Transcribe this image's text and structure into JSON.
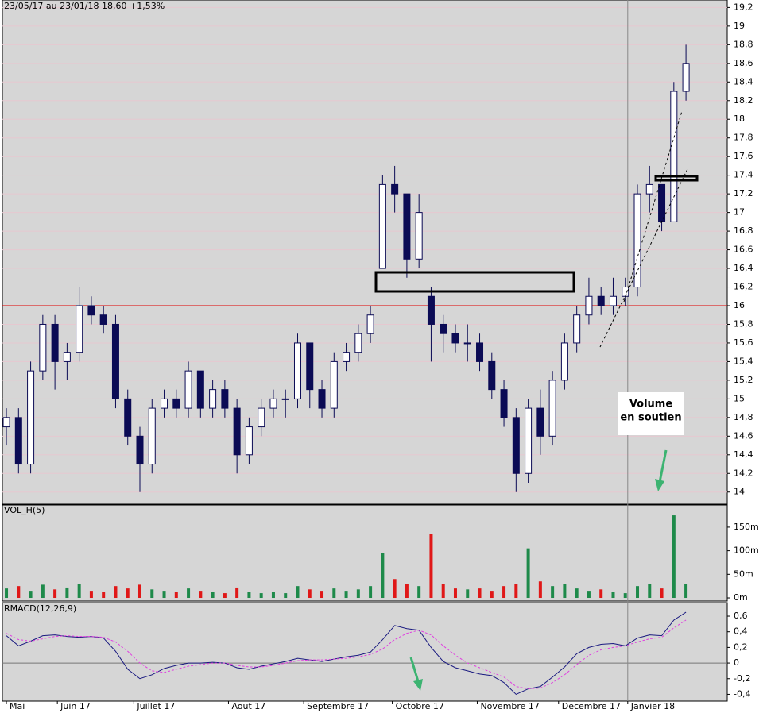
{
  "chart_data": [
    {
      "type": "candlestick",
      "title": "23/05/17 au 23/01/18  18,60  +1,53%",
      "open": [
        14.7,
        14.8,
        14.3,
        15.3,
        15.8,
        15.4,
        15.5,
        16.0,
        15.9,
        15.8,
        15.0,
        14.6,
        14.3,
        14.9,
        15.0,
        14.9,
        15.3,
        14.9,
        15.1,
        14.9,
        14.4,
        14.7,
        14.9,
        15.0,
        15.0,
        15.6,
        15.1,
        14.9,
        15.4,
        15.5,
        15.7,
        16.4,
        17.3,
        17.2,
        16.5,
        16.1,
        15.8,
        15.7,
        15.6,
        15.6,
        15.4,
        15.1,
        14.8,
        14.2,
        14.9,
        14.6,
        15.2,
        15.6,
        15.9,
        16.1,
        16.0,
        16.1,
        16.2,
        17.2,
        17.3,
        16.9,
        18.3
      ],
      "high": [
        14.9,
        14.9,
        15.4,
        15.9,
        15.9,
        15.6,
        16.2,
        16.1,
        16.0,
        15.9,
        15.1,
        14.7,
        15.0,
        15.1,
        15.1,
        15.4,
        15.3,
        15.2,
        15.2,
        15.0,
        14.8,
        15.0,
        15.1,
        15.1,
        15.7,
        15.6,
        15.2,
        15.5,
        15.6,
        15.8,
        16.0,
        17.4,
        17.5,
        17.2,
        17.2,
        16.2,
        15.9,
        15.8,
        15.8,
        15.7,
        15.5,
        15.2,
        14.9,
        15.0,
        15.1,
        15.3,
        15.7,
        16.0,
        16.3,
        16.2,
        16.3,
        16.3,
        17.3,
        17.5,
        17.3,
        18.4,
        18.8
      ],
      "low": [
        14.5,
        14.2,
        14.2,
        15.2,
        15.1,
        15.2,
        15.4,
        15.8,
        15.7,
        14.9,
        14.5,
        14.0,
        14.2,
        14.8,
        14.8,
        14.8,
        14.8,
        14.8,
        14.8,
        14.2,
        14.3,
        14.6,
        14.8,
        14.8,
        14.9,
        14.9,
        14.8,
        14.8,
        15.3,
        15.4,
        15.6,
        16.4,
        17.0,
        16.3,
        16.4,
        15.4,
        15.5,
        15.5,
        15.4,
        15.3,
        15.0,
        14.7,
        14.0,
        14.1,
        14.4,
        14.5,
        15.1,
        15.5,
        15.8,
        15.9,
        15.9,
        16.0,
        16.1,
        17.0,
        16.8,
        16.9,
        18.2
      ],
      "close": [
        14.8,
        14.3,
        15.3,
        15.8,
        15.4,
        15.5,
        16.0,
        15.9,
        15.8,
        15.0,
        14.6,
        14.3,
        14.9,
        15.0,
        14.9,
        15.3,
        14.9,
        15.1,
        14.9,
        14.4,
        14.7,
        14.9,
        15.0,
        15.0,
        15.6,
        15.1,
        14.9,
        15.4,
        15.5,
        15.7,
        15.9,
        17.3,
        17.2,
        16.5,
        17.0,
        15.8,
        15.7,
        15.6,
        15.6,
        15.4,
        15.1,
        14.8,
        14.2,
        14.9,
        14.6,
        15.2,
        15.6,
        15.9,
        16.1,
        16.0,
        16.1,
        16.2,
        17.2,
        17.3,
        16.9,
        18.3,
        18.6
      ],
      "up_color": "#ffffff",
      "down_color": "#0b0b55",
      "xlim": [
        -0.33,
        59.4
      ],
      "ylim": [
        13.87,
        19.28
      ],
      "yticks": [
        14,
        {
          "value": 14.2,
          "label": "14,2"
        },
        {
          "value": 14.4,
          "label": "14,4"
        },
        {
          "value": 14.6,
          "label": "14,6"
        },
        {
          "value": 14.8,
          "label": "14,8"
        },
        15,
        {
          "value": 15.2,
          "label": "15,2"
        },
        {
          "value": 15.4,
          "label": "15,4"
        },
        {
          "value": 15.6,
          "label": "15,6"
        },
        {
          "value": 15.8,
          "label": "15,8"
        },
        16,
        {
          "value": 16.2,
          "label": "16,2"
        },
        {
          "value": 16.4,
          "label": "16,4"
        },
        {
          "value": 16.6,
          "label": "16,6"
        },
        {
          "value": 16.8,
          "label": "16,8"
        },
        17,
        {
          "value": 17.2,
          "label": "17,2"
        },
        {
          "value": 17.4,
          "label": "17,4"
        },
        {
          "value": 17.6,
          "label": "17,6"
        },
        {
          "value": 17.8,
          "label": "17,8"
        },
        18,
        {
          "value": 18.2,
          "label": "18,2"
        },
        {
          "value": 18.4,
          "label": "18,4"
        },
        {
          "value": 18.6,
          "label": "18,6"
        },
        {
          "value": 18.8,
          "label": "18,8"
        },
        19,
        {
          "value": 19.2,
          "label": "19,2"
        }
      ],
      "grid": true,
      "hline": 16,
      "hline_color": "#e00000",
      "vline": 51.2,
      "annotation": [
        "Volume",
        "en soutien"
      ]
    },
    {
      "type": "bar",
      "title": "VOL_H(5)",
      "values": [
        20,
        25,
        15,
        28,
        18,
        22,
        30,
        15,
        12,
        25,
        20,
        28,
        18,
        15,
        12,
        20,
        15,
        12,
        10,
        22,
        12,
        10,
        12,
        10,
        25,
        18,
        15,
        20,
        15,
        18,
        25,
        95,
        40,
        30,
        25,
        135,
        30,
        20,
        18,
        20,
        15,
        25,
        30,
        105,
        35,
        25,
        30,
        20,
        15,
        18,
        12,
        10,
        25,
        30,
        20,
        175,
        30
      ],
      "up_color": "#1e8a4a",
      "down_color": "#e01818",
      "ylim": [
        -6.7,
        197
      ],
      "yticks": [
        {
          "value": 0,
          "label": "0m"
        },
        {
          "value": 50,
          "label": "50m"
        },
        {
          "value": 100,
          "label": "100m"
        },
        {
          "value": 150,
          "label": "150m"
        }
      ]
    },
    {
      "type": "line",
      "title": "RMACD(12,26,9)",
      "series": [
        {
          "color": "#1a1a80",
          "values": [
            0.35,
            0.22,
            0.28,
            0.35,
            0.36,
            0.34,
            0.33,
            0.34,
            0.32,
            0.15,
            -0.08,
            -0.2,
            -0.15,
            -0.07,
            -0.03,
            0.0,
            0.0,
            0.01,
            0.0,
            -0.06,
            -0.08,
            -0.04,
            -0.01,
            0.02,
            0.06,
            0.04,
            0.02,
            0.05,
            0.08,
            0.1,
            0.14,
            0.3,
            0.48,
            0.44,
            0.42,
            0.2,
            0.02,
            -0.06,
            -0.1,
            -0.14,
            -0.16,
            -0.25,
            -0.4,
            -0.33,
            -0.3,
            -0.18,
            -0.05,
            0.12,
            0.2,
            0.24,
            0.25,
            0.22,
            0.32,
            0.36,
            0.35,
            0.55,
            0.65
          ]
        },
        {
          "color": "#e040e0",
          "values": [
            0.38,
            0.3,
            0.28,
            0.31,
            0.34,
            0.35,
            0.34,
            0.34,
            0.33,
            0.27,
            0.15,
            0.0,
            -0.1,
            -0.12,
            -0.08,
            -0.04,
            -0.02,
            0.0,
            0.0,
            -0.03,
            -0.05,
            -0.05,
            -0.03,
            0.0,
            0.03,
            0.04,
            0.04,
            0.05,
            0.06,
            0.08,
            0.11,
            0.18,
            0.3,
            0.38,
            0.42,
            0.36,
            0.22,
            0.1,
            0.0,
            -0.06,
            -0.12,
            -0.18,
            -0.3,
            -0.33,
            -0.32,
            -0.25,
            -0.15,
            -0.02,
            0.1,
            0.17,
            0.2,
            0.22,
            0.27,
            0.31,
            0.33,
            0.45,
            0.55
          ]
        }
      ],
      "ylim": [
        -0.487,
        0.773
      ],
      "yticks": [
        {
          "value": -0.4,
          "label": "-0,4"
        },
        {
          "value": -0.2,
          "label": "-0,2"
        },
        0,
        {
          "value": 0.2,
          "label": "0,2"
        },
        {
          "value": 0.4,
          "label": "0,4"
        },
        {
          "value": 0.6,
          "label": "0,6"
        }
      ],
      "xticks": [
        {
          "value": 0,
          "label": "Mai"
        },
        {
          "value": 4.2,
          "label": "Juin 17"
        },
        {
          "value": 10.5,
          "label": "Juillet 17"
        },
        {
          "value": 18.3,
          "label": "Aout 17"
        },
        {
          "value": 24.5,
          "label": "Septembre 17"
        },
        {
          "value": 31.8,
          "label": "Octobre 17"
        },
        {
          "value": 38.8,
          "label": "Novembre 17"
        },
        {
          "value": 45.5,
          "label": "Decembre 17"
        },
        {
          "value": 51.2,
          "label": "Janvier 18"
        }
      ]
    }
  ]
}
